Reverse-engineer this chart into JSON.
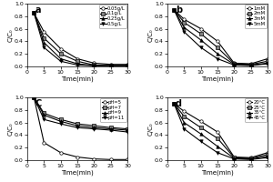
{
  "panel_a": {
    "label": "a",
    "xlabel": "Time(min)",
    "ylabel": "C/C₀",
    "xlim": [
      0,
      30
    ],
    "ylim": [
      0,
      1.0
    ],
    "time": [
      2,
      5,
      10,
      15,
      20,
      25,
      30
    ],
    "series": [
      {
        "label": "0.05g/L",
        "marker": "o",
        "values": [
          0.85,
          0.55,
          0.28,
          0.12,
          0.05,
          0.03,
          0.03
        ]
      },
      {
        "label": "0.1g/L",
        "marker": "s",
        "values": [
          0.85,
          0.45,
          0.2,
          0.08,
          0.02,
          0.01,
          0.01
        ]
      },
      {
        "label": "0.25g/L",
        "marker": "^",
        "values": [
          0.85,
          0.38,
          0.12,
          0.04,
          0.01,
          0.01,
          0.01
        ]
      },
      {
        "label": "0.5g/L",
        "marker": "v",
        "values": [
          0.85,
          0.3,
          0.08,
          0.02,
          0.01,
          0.01,
          0.01
        ]
      }
    ]
  },
  "panel_b": {
    "label": "b",
    "xlabel": "Time(min)",
    "ylabel": "C/C₀",
    "xlim": [
      0,
      30
    ],
    "ylim": [
      0,
      1.0
    ],
    "time": [
      2,
      5,
      10,
      15,
      20,
      25,
      30
    ],
    "series": [
      {
        "label": "1mM",
        "marker": "o",
        "values": [
          0.9,
          0.75,
          0.6,
          0.4,
          0.05,
          0.04,
          0.12
        ]
      },
      {
        "label": "2mM",
        "marker": "s",
        "values": [
          0.9,
          0.7,
          0.52,
          0.3,
          0.04,
          0.03,
          0.08
        ]
      },
      {
        "label": "3mM",
        "marker": "^",
        "values": [
          0.9,
          0.62,
          0.42,
          0.2,
          0.03,
          0.02,
          0.05
        ]
      },
      {
        "label": "5mM",
        "marker": "v",
        "values": [
          0.9,
          0.55,
          0.3,
          0.12,
          0.02,
          0.01,
          0.04
        ]
      }
    ]
  },
  "panel_c": {
    "label": "C",
    "xlabel": "Time(min)",
    "ylabel": "C/C₀",
    "xlim": [
      0,
      30
    ],
    "ylim": [
      0,
      1.0
    ],
    "time": [
      2,
      5,
      10,
      15,
      20,
      25,
      30
    ],
    "series": [
      {
        "label": "pH=5",
        "marker": "o",
        "values": [
          1.0,
          0.28,
          0.12,
          0.05,
          0.02,
          0.01,
          0.01
        ]
      },
      {
        "label": "pH=7",
        "marker": "s",
        "values": [
          1.0,
          0.75,
          0.65,
          0.58,
          0.55,
          0.52,
          0.5
        ]
      },
      {
        "label": "pH=9",
        "marker": "^",
        "values": [
          1.0,
          0.72,
          0.62,
          0.55,
          0.52,
          0.5,
          0.48
        ]
      },
      {
        "label": "pH=11",
        "marker": "v",
        "values": [
          1.0,
          0.65,
          0.58,
          0.52,
          0.5,
          0.48,
          0.45
        ]
      }
    ]
  },
  "panel_d": {
    "label": "d",
    "xlabel": "Time(min)",
    "ylabel": "C/C₀",
    "xlim": [
      0,
      30
    ],
    "ylim": [
      0,
      1.0
    ],
    "time": [
      2,
      5,
      10,
      15,
      20,
      25,
      30
    ],
    "series": [
      {
        "label": "20°C",
        "marker": "o",
        "values": [
          0.9,
          0.78,
          0.62,
          0.45,
          0.05,
          0.04,
          0.12
        ]
      },
      {
        "label": "25°C",
        "marker": "s",
        "values": [
          0.9,
          0.7,
          0.52,
          0.35,
          0.04,
          0.03,
          0.09
        ]
      },
      {
        "label": "35°C",
        "marker": "^",
        "values": [
          0.9,
          0.6,
          0.42,
          0.22,
          0.03,
          0.02,
          0.06
        ]
      },
      {
        "label": "45°C",
        "marker": "v",
        "values": [
          0.9,
          0.5,
          0.3,
          0.12,
          0.02,
          0.01,
          0.04
        ]
      }
    ]
  },
  "color": "#000000",
  "linewidth": 0.8,
  "markersize": 2.5,
  "fontsize_label": 5,
  "fontsize_tick": 4.5,
  "fontsize_legend": 3.8,
  "fontsize_panel": 7
}
